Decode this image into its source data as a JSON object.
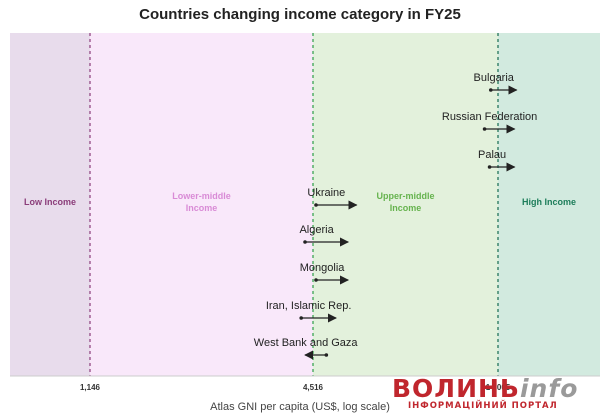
{
  "chart_data": {
    "type": "arrow-dot",
    "title": "Countries changing income category in FY25",
    "xlabel": "Atlas GNI per capita (US$, log scale)",
    "x_scale": "log",
    "xlim": [
      700,
      30000
    ],
    "thresholds": [
      {
        "value": 1146,
        "label": "1,146",
        "color": "#8b3d7a"
      },
      {
        "value": 4516,
        "label": "4,516",
        "color": "#2e9e48"
      },
      {
        "value": 14005,
        "label": "14,005",
        "color": "#166b52"
      }
    ],
    "bands": [
      {
        "label": "Low Income",
        "label_lines": [
          "Low Income"
        ],
        "from": 700,
        "to": 1146,
        "fill": "#e8dcec",
        "text_color": "#8b3d7a"
      },
      {
        "label": "Lower-middle Income",
        "label_lines": [
          "Lower-middle",
          "Income"
        ],
        "from": 1146,
        "to": 4516,
        "fill": "#f9e8fa",
        "text_color": "#d98bd6"
      },
      {
        "label": "Upper-middle Income",
        "label_lines": [
          "Upper-middle",
          "Income"
        ],
        "from": 4516,
        "to": 14005,
        "fill": "#e3f1dc",
        "text_color": "#66b34e"
      },
      {
        "label": "High Income",
        "label_lines": [
          "High Income"
        ],
        "from": 14005,
        "to": 30000,
        "fill": "#d2eadf",
        "text_color": "#1d7d5a"
      }
    ],
    "series": [
      {
        "country": "Bulgaria",
        "from": 13400,
        "to": 15700
      },
      {
        "country": "Russian Federation",
        "from": 12900,
        "to": 15500
      },
      {
        "country": "Palau",
        "from": 13300,
        "to": 15500
      },
      {
        "country": "Ukraine",
        "from": 4600,
        "to": 5900
      },
      {
        "country": "Algeria",
        "from": 4300,
        "to": 5600
      },
      {
        "country": "Mongolia",
        "from": 4600,
        "to": 5600
      },
      {
        "country": "Iran, Islamic Rep.",
        "from": 4200,
        "to": 5200
      },
      {
        "country": "West Bank and Gaza",
        "from": 4900,
        "to": 4300
      }
    ]
  },
  "watermark": {
    "main_red": "ВОЛИНЬ",
    "main_gray": "info",
    "sub": "ІНФОРМАЦІЙНИЙ ПОРТАЛ"
  }
}
